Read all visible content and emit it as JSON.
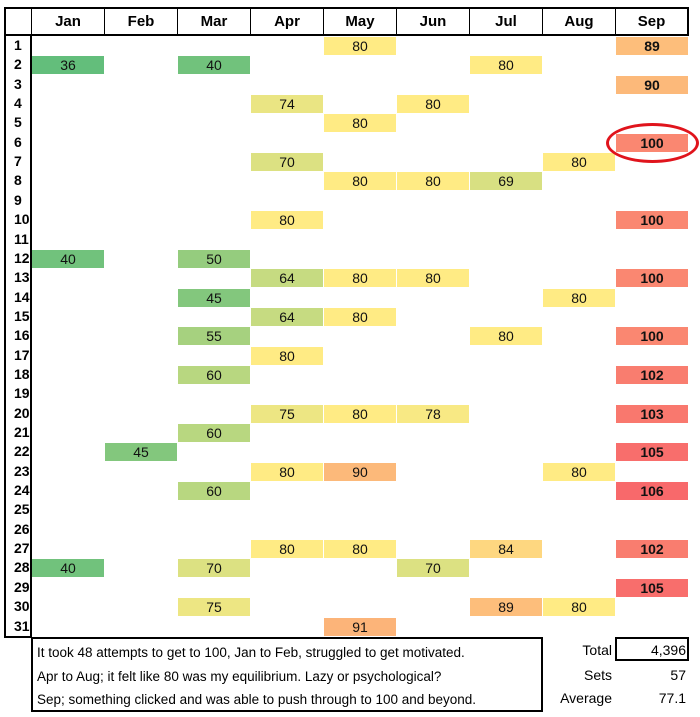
{
  "chart_data": {
    "type": "heatmap",
    "title": "",
    "columns": [
      "Jan",
      "Feb",
      "Mar",
      "Apr",
      "May",
      "Jun",
      "Jul",
      "Aug",
      "Sep"
    ],
    "rows": [
      1,
      2,
      3,
      4,
      5,
      6,
      7,
      8,
      9,
      10,
      11,
      12,
      13,
      14,
      15,
      16,
      17,
      18,
      19,
      20,
      21,
      22,
      23,
      24,
      25,
      26,
      27,
      28,
      29,
      30,
      31
    ],
    "values": {
      "Jan": {
        "2": 36,
        "12": 40,
        "28": 40
      },
      "Feb": {
        "22": 45
      },
      "Mar": {
        "2": 40,
        "12": 50,
        "14": 45,
        "16": 55,
        "18": 60,
        "21": 60,
        "24": 60,
        "28": 70,
        "30": 75
      },
      "Apr": {
        "4": 74,
        "7": 70,
        "10": 80,
        "13": 64,
        "15": 64,
        "17": 80,
        "20": 75,
        "23": 80,
        "27": 80
      },
      "May": {
        "1": 80,
        "5": 80,
        "8": 80,
        "13": 80,
        "15": 80,
        "20": 80,
        "23": 90,
        "27": 80,
        "31": 91
      },
      "Jun": {
        "4": 80,
        "8": 80,
        "13": 80,
        "20": 78,
        "28": 70
      },
      "Jul": {
        "2": 80,
        "8": 69,
        "16": 80,
        "27": 84,
        "30": 89
      },
      "Aug": {
        "7": 80,
        "14": 80,
        "23": 80,
        "30": 80
      },
      "Sep": {
        "1": 89,
        "3": 90,
        "6": 100,
        "10": 100,
        "13": 100,
        "16": 100,
        "18": 102,
        "20": 103,
        "22": 105,
        "24": 106,
        "27": 102,
        "29": 105
      }
    },
    "bold_columns": [
      "Sep"
    ],
    "highlighted": {
      "column": "Sep",
      "row": 6
    },
    "color_scale": {
      "min": 36,
      "mid": 80,
      "max": 106,
      "min_color": "#63be7b",
      "mid_color": "#ffeb84",
      "max_color": "#f8696b"
    }
  },
  "notes": [
    "It took 48 attempts to get to 100, Jan to Feb, struggled to get motivated.",
    "Apr to Aug; it felt like 80 was my equilibrium. Lazy or psychological?",
    "Sep; something clicked and was able to push through to 100 and beyond."
  ],
  "summary": {
    "total_label": "Total",
    "total": "4,396",
    "sets_label": "Sets",
    "sets": "57",
    "average_label": "Average",
    "average": "77.1"
  },
  "highlight_color": "#e0141c"
}
